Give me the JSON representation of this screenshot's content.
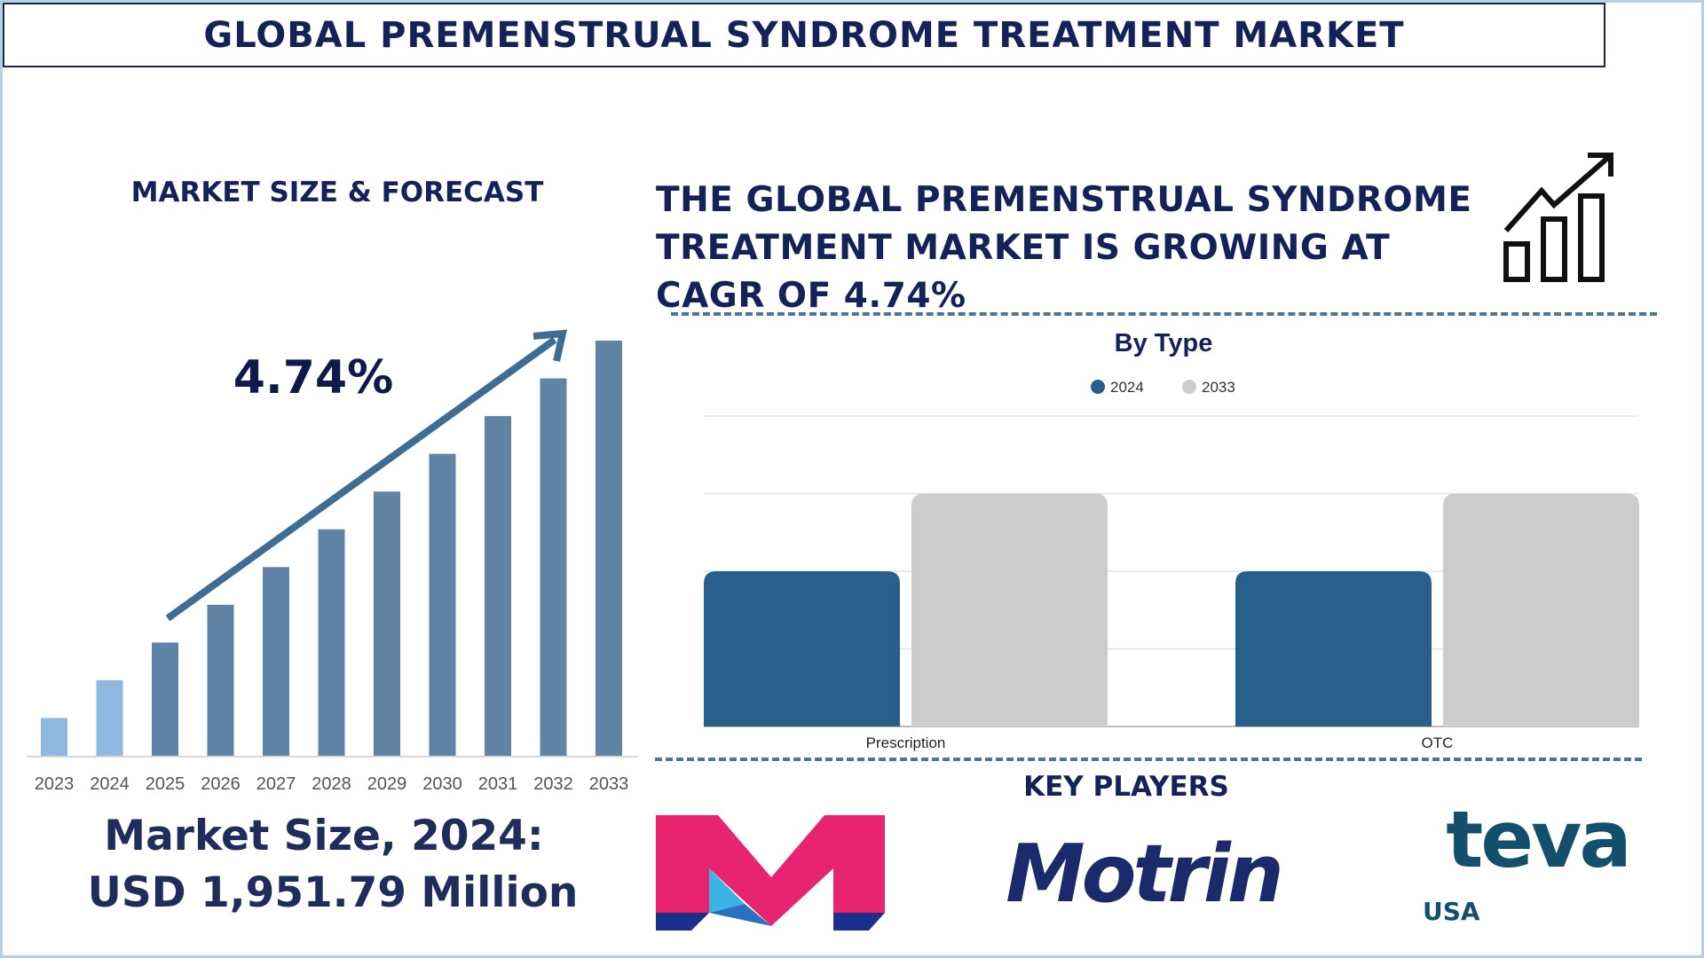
{
  "title": "GLOBAL PREMENSTRUAL SYNDROME TREATMENT MARKET",
  "left_panel": {
    "heading": "MARKET SIZE & FORECAST",
    "cagr_label": "4.74%",
    "market_size_line1": "Market Size, 2024:",
    "market_size_line2": "USD 1,951.79 Million"
  },
  "right_panel": {
    "headline": [
      "THE GLOBAL PREMENSTRUAL SYNDROME",
      "TREATMENT MARKET IS GROWING AT",
      "CAGR OF 4.74%"
    ],
    "growth_icon": "growth-chart-arrow-icon",
    "key_players_heading": "KEY PLAYERS",
    "key_players": [
      {
        "name": "M",
        "colors": [
          "#e8236f",
          "#3bb4e5",
          "#1b2f8c"
        ]
      },
      {
        "name": "Motrin",
        "color": "#1b2a6b"
      },
      {
        "name": "teva",
        "sub": "USA",
        "color": "#12506b"
      }
    ]
  },
  "chart_data": [
    {
      "type": "bar",
      "categories": [
        "2023",
        "2024",
        "2025",
        "2026",
        "2027",
        "2028",
        "2029",
        "2030",
        "2031",
        "2032",
        "2033"
      ],
      "values": [
        1.0,
        2.0,
        3.0,
        4.0,
        5.0,
        6.0,
        7.0,
        8.0,
        9.0,
        10.0,
        11.0
      ],
      "historical_color": "#8fb8df",
      "forecast_color": "#5f84a6",
      "trend_arrow_color": "#3d6c94",
      "grid": false
    },
    {
      "type": "bar",
      "title": "By Type",
      "categories": [
        "Prescription",
        "OTC"
      ],
      "series": [
        {
          "name": "2024",
          "values": [
            2,
            2
          ],
          "color": "#27608d"
        },
        {
          "name": "2033",
          "values": [
            3,
            3
          ],
          "color": "#cccccc"
        }
      ],
      "ylim": [
        0,
        4
      ],
      "grid": true,
      "legend": "top-center"
    }
  ]
}
